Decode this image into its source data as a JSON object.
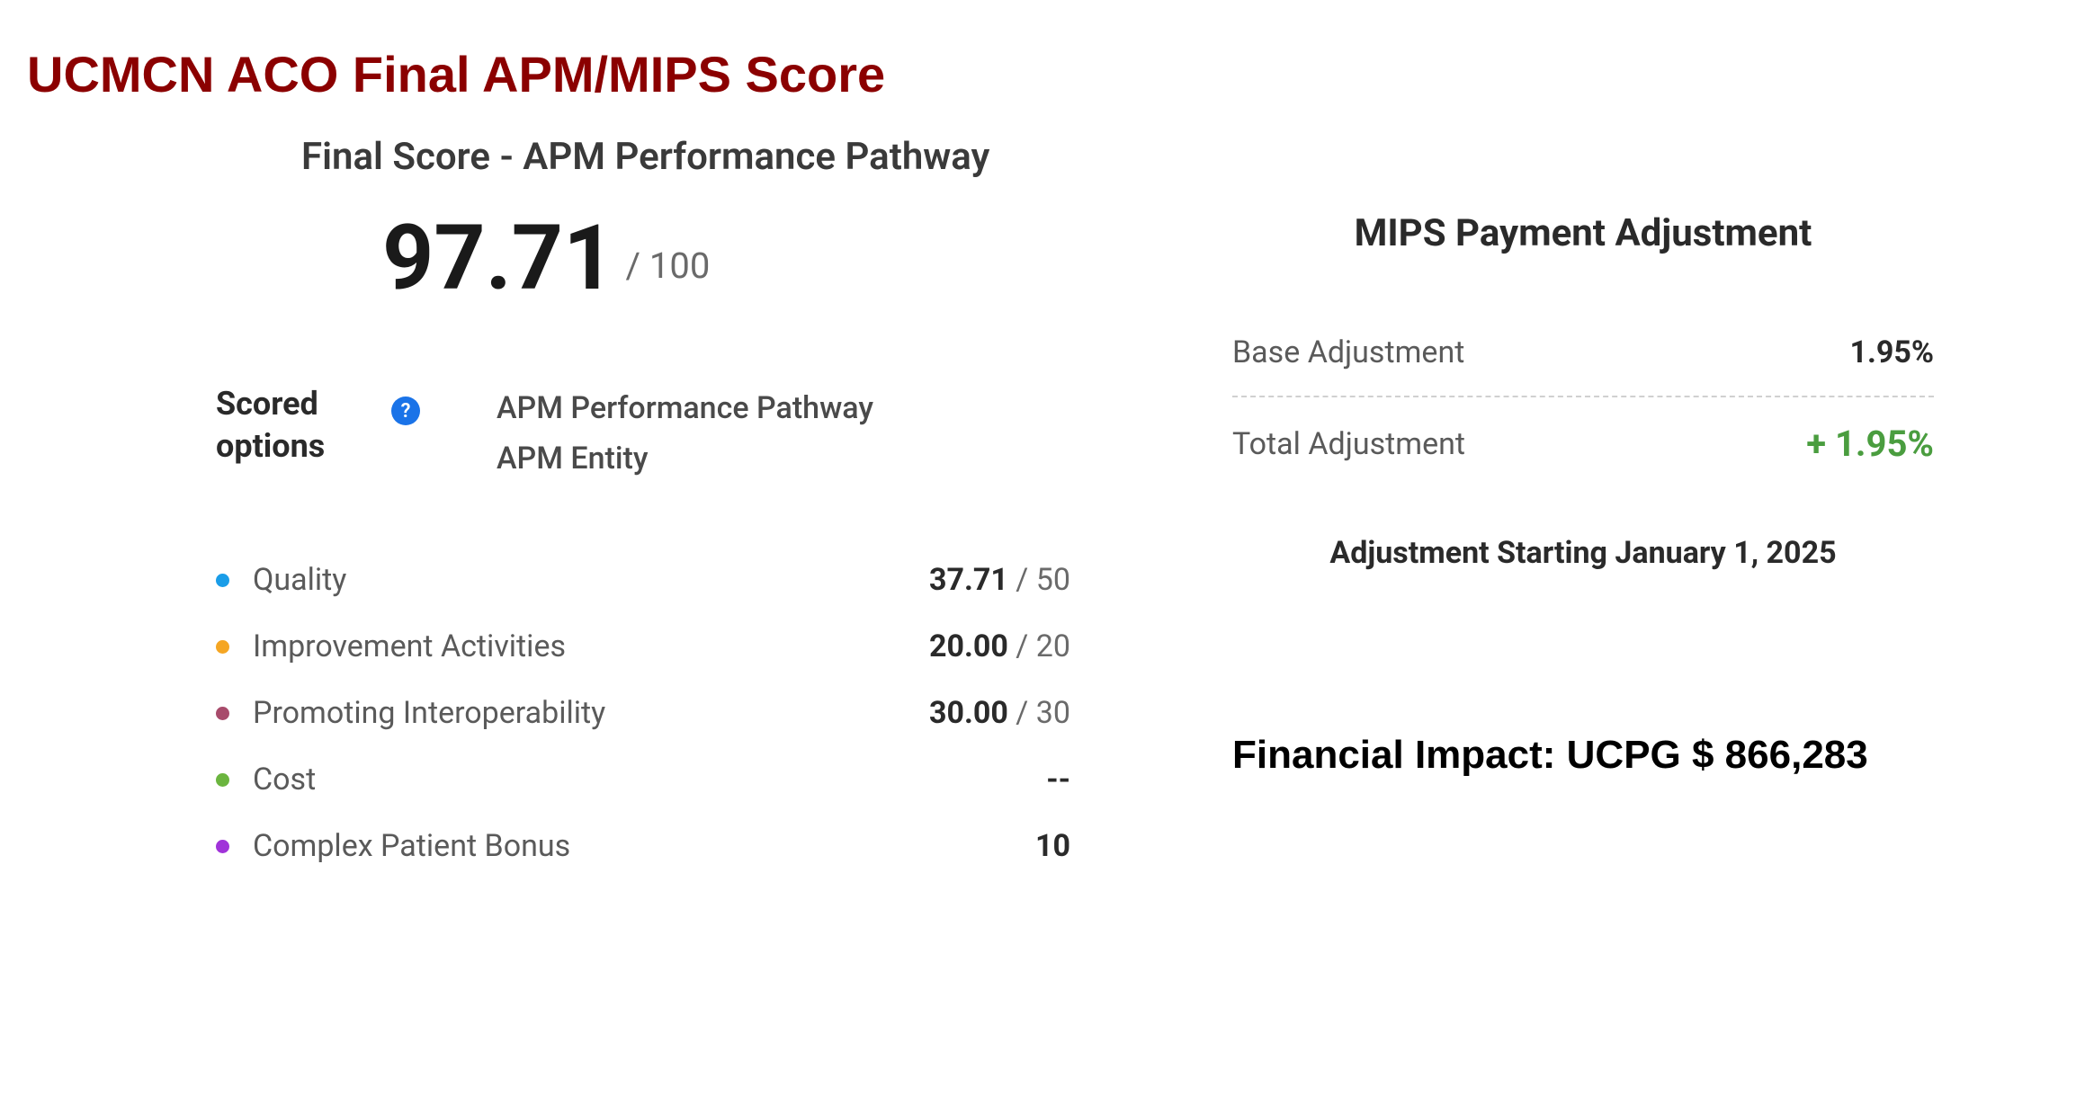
{
  "page_title": "UCMCN ACO Final APM/MIPS Score",
  "score": {
    "heading": "Final Score - APM Performance Pathway",
    "value": "97.71",
    "max": "/ 100"
  },
  "scored_options": {
    "label": "Scored options",
    "help_icon": "?",
    "values": {
      "pathway": "APM Performance Pathway",
      "entity": "APM Entity"
    }
  },
  "metrics": {
    "bullet_colors": {
      "quality": "#1a9de8",
      "improvement": "#f5a623",
      "interop": "#a84b6b",
      "cost": "#6bb53f",
      "bonus": "#a033d9"
    },
    "rows": [
      {
        "label": "Quality",
        "achieved": "37.71",
        "max": " / 50",
        "bullet_key": "quality"
      },
      {
        "label": "Improvement Activities",
        "achieved": "20.00",
        "max": " / 20",
        "bullet_key": "improvement"
      },
      {
        "label": "Promoting Interoperability",
        "achieved": "30.00",
        "max": " / 30",
        "bullet_key": "interop"
      },
      {
        "label": "Cost",
        "achieved": "--",
        "max": "",
        "bullet_key": "cost"
      },
      {
        "label": "Complex Patient Bonus",
        "achieved": "10",
        "max": "",
        "bullet_key": "bonus"
      }
    ]
  },
  "adjustment": {
    "heading": "MIPS Payment Adjustment",
    "base_label": "Base Adjustment",
    "base_value": "1.95%",
    "total_label": "Total Adjustment",
    "total_value": "+ 1.95%",
    "note": "Adjustment Starting January 1, 2025"
  },
  "financial_impact": "Financial Impact: UCPG $ 866,283",
  "colors": {
    "title": "#8b0000",
    "positive": "#4a9d3f",
    "background": "#ffffff",
    "text_primary": "#2a2a2a",
    "text_secondary": "#5a5a5a",
    "text_muted": "#6a6a6a"
  }
}
